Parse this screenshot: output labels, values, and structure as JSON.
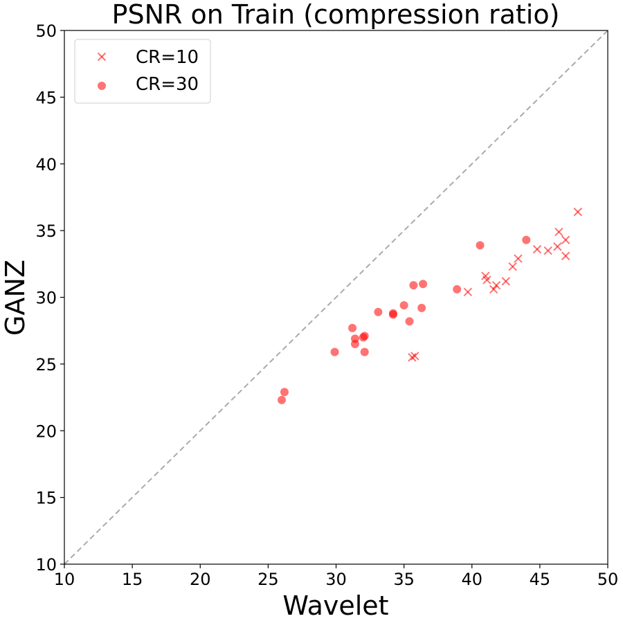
{
  "chart_data": {
    "type": "scatter",
    "title": "PSNR on Train (compression ratio)",
    "xlabel": "Wavelet",
    "ylabel": "GANZ",
    "xlim": [
      10,
      50
    ],
    "ylim": [
      10,
      50
    ],
    "xticks": [
      "10",
      "15",
      "20",
      "25",
      "30",
      "35",
      "40",
      "45",
      "50"
    ],
    "yticks": [
      "10",
      "15",
      "20",
      "25",
      "30",
      "35",
      "40",
      "45",
      "50"
    ],
    "grid": false,
    "legend_position": "top-left",
    "reference_line": "y = x (dashed)",
    "colors": {
      "series": "#ff0000",
      "reference_line": "#aaaaaa"
    },
    "series": [
      {
        "name": "CR=10",
        "marker": "x",
        "points": [
          [
            35.6,
            25.5
          ],
          [
            35.8,
            25.6
          ],
          [
            39.7,
            30.4
          ],
          [
            41.0,
            31.6
          ],
          [
            41.1,
            31.3
          ],
          [
            41.6,
            30.6
          ],
          [
            41.8,
            30.9
          ],
          [
            42.5,
            31.2
          ],
          [
            43.0,
            32.3
          ],
          [
            43.4,
            32.9
          ],
          [
            44.8,
            33.6
          ],
          [
            45.6,
            33.5
          ],
          [
            46.3,
            33.8
          ],
          [
            46.4,
            34.9
          ],
          [
            46.9,
            34.3
          ],
          [
            46.9,
            33.1
          ],
          [
            47.8,
            36.4
          ]
        ]
      },
      {
        "name": "CR=30",
        "marker": "circle",
        "points": [
          [
            26.0,
            22.3
          ],
          [
            26.2,
            22.9
          ],
          [
            29.9,
            25.9
          ],
          [
            31.2,
            27.7
          ],
          [
            31.4,
            26.9
          ],
          [
            31.4,
            26.5
          ],
          [
            32.0,
            27.0
          ],
          [
            32.1,
            27.1
          ],
          [
            32.1,
            25.9
          ],
          [
            33.1,
            28.9
          ],
          [
            34.2,
            28.8
          ],
          [
            34.2,
            28.7
          ],
          [
            35.0,
            29.4
          ],
          [
            35.4,
            28.2
          ],
          [
            35.7,
            30.9
          ],
          [
            36.3,
            29.2
          ],
          [
            36.4,
            31.0
          ],
          [
            38.9,
            30.6
          ],
          [
            40.6,
            33.9
          ],
          [
            44.0,
            34.3
          ]
        ]
      }
    ]
  }
}
